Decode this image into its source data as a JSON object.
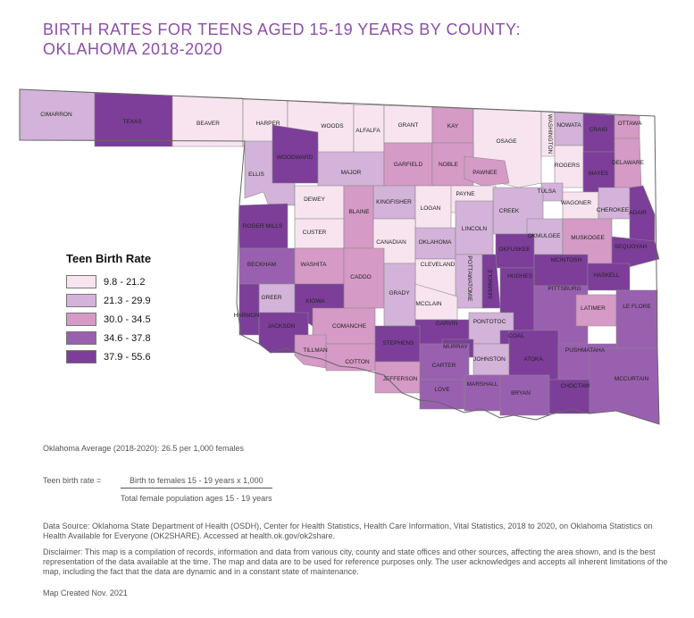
{
  "title_line1": "BIRTH RATES FOR TEENS AGED 15-19 YEARS BY COUNTY:",
  "title_line2": "OKLAHOMA 2018-2020",
  "legend": {
    "title": "Teen Birth Rate",
    "items": [
      {
        "label": "9.8 - 21.2",
        "color": "#f7e4ef"
      },
      {
        "label": "21.3 - 29.9",
        "color": "#d3b3d9"
      },
      {
        "label": "30.0 - 34.5",
        "color": "#d59ac6"
      },
      {
        "label": "34.6 - 37.8",
        "color": "#9a60b0"
      },
      {
        "label": "37.9 - 55.6",
        "color": "#7c3e99"
      }
    ]
  },
  "counties": [
    {
      "name": "CIMARRON",
      "cls": 1
    },
    {
      "name": "TEXAS",
      "cls": 4
    },
    {
      "name": "BEAVER",
      "cls": 0
    },
    {
      "name": "HARPER",
      "cls": 0
    },
    {
      "name": "WOODS",
      "cls": 0
    },
    {
      "name": "ALFALFA",
      "cls": 0
    },
    {
      "name": "GRANT",
      "cls": 0
    },
    {
      "name": "KAY",
      "cls": 2
    },
    {
      "name": "OSAGE",
      "cls": 0
    },
    {
      "name": "WASHINGTON",
      "cls": 0
    },
    {
      "name": "NOWATA",
      "cls": 1
    },
    {
      "name": "CRAIG",
      "cls": 4
    },
    {
      "name": "OTTAWA",
      "cls": 2
    },
    {
      "name": "DELAWARE",
      "cls": 2
    },
    {
      "name": "ELLIS",
      "cls": 1
    },
    {
      "name": "WOODWARD",
      "cls": 4
    },
    {
      "name": "MAJOR",
      "cls": 1
    },
    {
      "name": "GARFIELD",
      "cls": 2
    },
    {
      "name": "NOBLE",
      "cls": 2
    },
    {
      "name": "PAWNEE",
      "cls": 2
    },
    {
      "name": "ROGERS",
      "cls": 0
    },
    {
      "name": "MAYES",
      "cls": 4
    },
    {
      "name": "TULSA",
      "cls": 1
    },
    {
      "name": "PAYNE",
      "cls": 0
    },
    {
      "name": "DEWEY",
      "cls": 0
    },
    {
      "name": "KINGFISHER",
      "cls": 1
    },
    {
      "name": "LOGAN",
      "cls": 0
    },
    {
      "name": "CREEK",
      "cls": 1
    },
    {
      "name": "WAGONER",
      "cls": 0
    },
    {
      "name": "CHEROKEE",
      "cls": 1
    },
    {
      "name": "ADAIR",
      "cls": 4
    },
    {
      "name": "ROGER MILLS",
      "cls": 4
    },
    {
      "name": "CUSTER",
      "cls": 0
    },
    {
      "name": "BLAINE",
      "cls": 2
    },
    {
      "name": "CANADIAN",
      "cls": 0
    },
    {
      "name": "OKLAHOMA",
      "cls": 1
    },
    {
      "name": "LINCOLN",
      "cls": 1
    },
    {
      "name": "OKMULGEE",
      "cls": 1
    },
    {
      "name": "MUSKOGEE",
      "cls": 2
    },
    {
      "name": "SEQUOYAH",
      "cls": 4
    },
    {
      "name": "BECKHAM",
      "cls": 3
    },
    {
      "name": "WASHITA",
      "cls": 2
    },
    {
      "name": "CADDO",
      "cls": 2
    },
    {
      "name": "CLEVELAND",
      "cls": 0
    },
    {
      "name": "POTTAWATOMIE",
      "cls": 1
    },
    {
      "name": "OKFUSKEE",
      "cls": 4
    },
    {
      "name": "MCINTOSH",
      "cls": 4
    },
    {
      "name": "HASKELL",
      "cls": 4
    },
    {
      "name": "SEMINOLE",
      "cls": 4
    },
    {
      "name": "GREER",
      "cls": 1
    },
    {
      "name": "KIOWA",
      "cls": 4
    },
    {
      "name": "GRADY",
      "cls": 1
    },
    {
      "name": "MCCLAIN",
      "cls": 0
    },
    {
      "name": "HUGHES",
      "cls": 4
    },
    {
      "name": "PITTSBURG",
      "cls": 3
    },
    {
      "name": "LATIMER",
      "cls": 2
    },
    {
      "name": "LE FLORE",
      "cls": 3
    },
    {
      "name": "HARMON",
      "cls": 4
    },
    {
      "name": "JACKSON",
      "cls": 4
    },
    {
      "name": "COMANCHE",
      "cls": 2
    },
    {
      "name": "GARVIN",
      "cls": 4
    },
    {
      "name": "PONTOTOC",
      "cls": 1
    },
    {
      "name": "COAL",
      "cls": 4
    },
    {
      "name": "TILLMAN",
      "cls": 2
    },
    {
      "name": "COTTON",
      "cls": 2
    },
    {
      "name": "STEPHENS",
      "cls": 4
    },
    {
      "name": "MURRAY",
      "cls": 4
    },
    {
      "name": "JOHNSTON",
      "cls": 1
    },
    {
      "name": "ATOKA",
      "cls": 4
    },
    {
      "name": "PUSHMATAHA",
      "cls": 3
    },
    {
      "name": "CARTER",
      "cls": 3
    },
    {
      "name": "JEFFERSON",
      "cls": 2
    },
    {
      "name": "LOVE",
      "cls": 3
    },
    {
      "name": "MARSHALL",
      "cls": 3
    },
    {
      "name": "BRYAN",
      "cls": 3
    },
    {
      "name": "CHOCTAW",
      "cls": 4
    },
    {
      "name": "MCCURTAIN",
      "cls": 3
    }
  ],
  "notes": {
    "average": "Oklahoma Average (2018-2020): 26.5 per 1,000 females",
    "formula_label": "Teen birth rate =",
    "numerator": "Birth to females 15 - 19 years x 1,000",
    "denominator": "Total female population ages 15 - 19 years",
    "source": "Data Source: Oklahoma State Department of Health (OSDH), Center for Health Statistics, Health Care Information, Vital Statistics, 2018 to 2020, on Oklahoma Statistics on Health Available for Everyone (OK2SHARE). Accessed at health.ok.gov/ok2share.",
    "disclaimer": "Disclaimer: This map is a compilation of records, information and data from various city, county and state offices and other sources, affecting the area shown, and is the best representation of the data available at the time. The map and data are to be used for reference purposes only. The user acknowledges and accepts all inherent limitations of the map, including the fact that the data are dynamic and in a constant state of maintenance.",
    "created": "Map Created Nov. 2021"
  }
}
